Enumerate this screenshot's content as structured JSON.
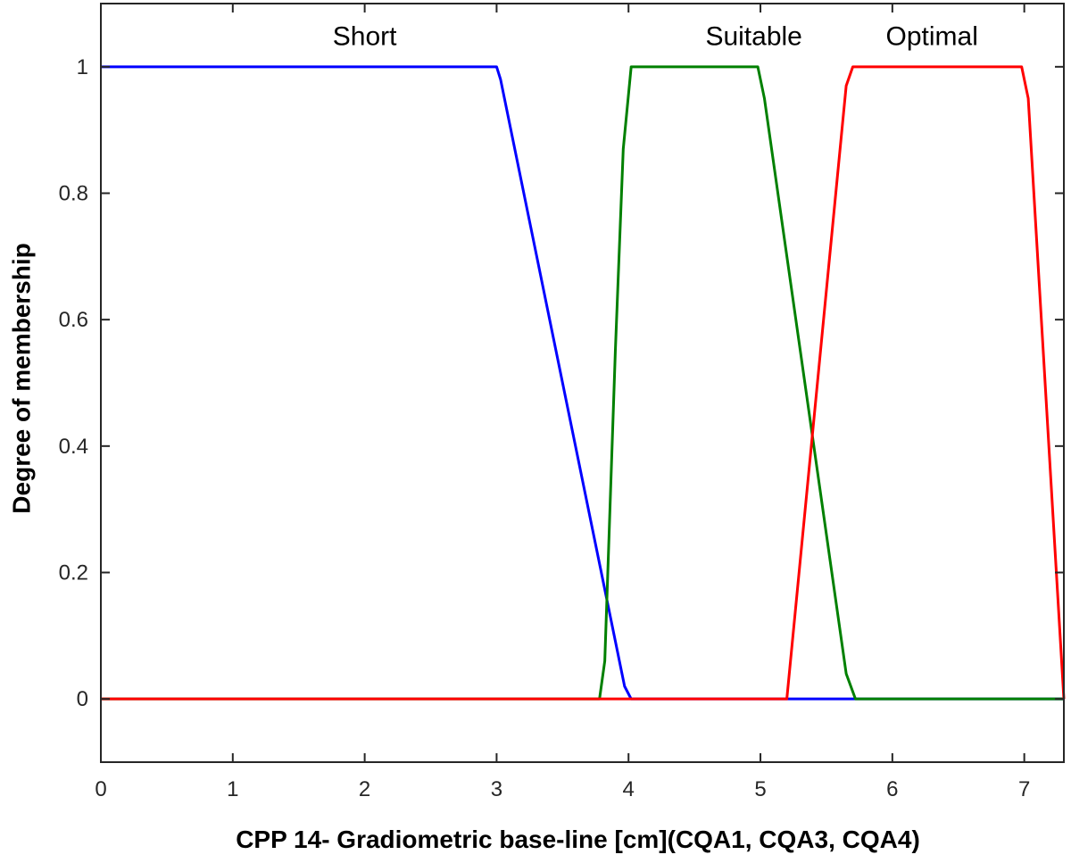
{
  "chart_data": {
    "type": "line",
    "title": "",
    "xlabel": "CPP 14- Gradiometric base-line [cm](CQA1, CQA3, CQA4)",
    "ylabel": "Degree of membership",
    "xlim": [
      0,
      7.3
    ],
    "ylim": [
      -0.1,
      1.1
    ],
    "x_ticks": [
      "0",
      "1",
      "2",
      "3",
      "4",
      "5",
      "6",
      "7"
    ],
    "x_tick_values": [
      0,
      1,
      2,
      3,
      4,
      5,
      6,
      7
    ],
    "y_ticks": [
      "0",
      "0.2",
      "0.4",
      "0.6",
      "0.8",
      "1"
    ],
    "y_tick_values": [
      0,
      0.2,
      0.4,
      0.6,
      0.8,
      1
    ],
    "grid": false,
    "series": [
      {
        "name": "Short",
        "color": "#0000ff",
        "label_x": 2.0,
        "label_y": 1.05,
        "x": [
          0,
          3.0,
          3.03,
          3.97,
          4.02,
          5.7,
          7.3
        ],
        "y": [
          1,
          1,
          0.98,
          0.02,
          0,
          0,
          0
        ]
      },
      {
        "name": "Suitable",
        "color": "#008000",
        "label_x": 4.95,
        "label_y": 1.05,
        "x": [
          0,
          3.78,
          3.82,
          3.9,
          3.96,
          4.02,
          4.98,
          5.03,
          5.65,
          5.72,
          7.3
        ],
        "y": [
          0,
          0,
          0.06,
          0.55,
          0.87,
          1,
          1,
          0.95,
          0.04,
          0,
          0
        ]
      },
      {
        "name": "Optimal",
        "color": "#ff0000",
        "label_x": 6.3,
        "label_y": 1.05,
        "x": [
          0,
          5.2,
          5.65,
          5.7,
          6.98,
          7.03,
          7.3
        ],
        "y": [
          0,
          0,
          0.97,
          1,
          1,
          0.95,
          0
        ]
      }
    ]
  }
}
